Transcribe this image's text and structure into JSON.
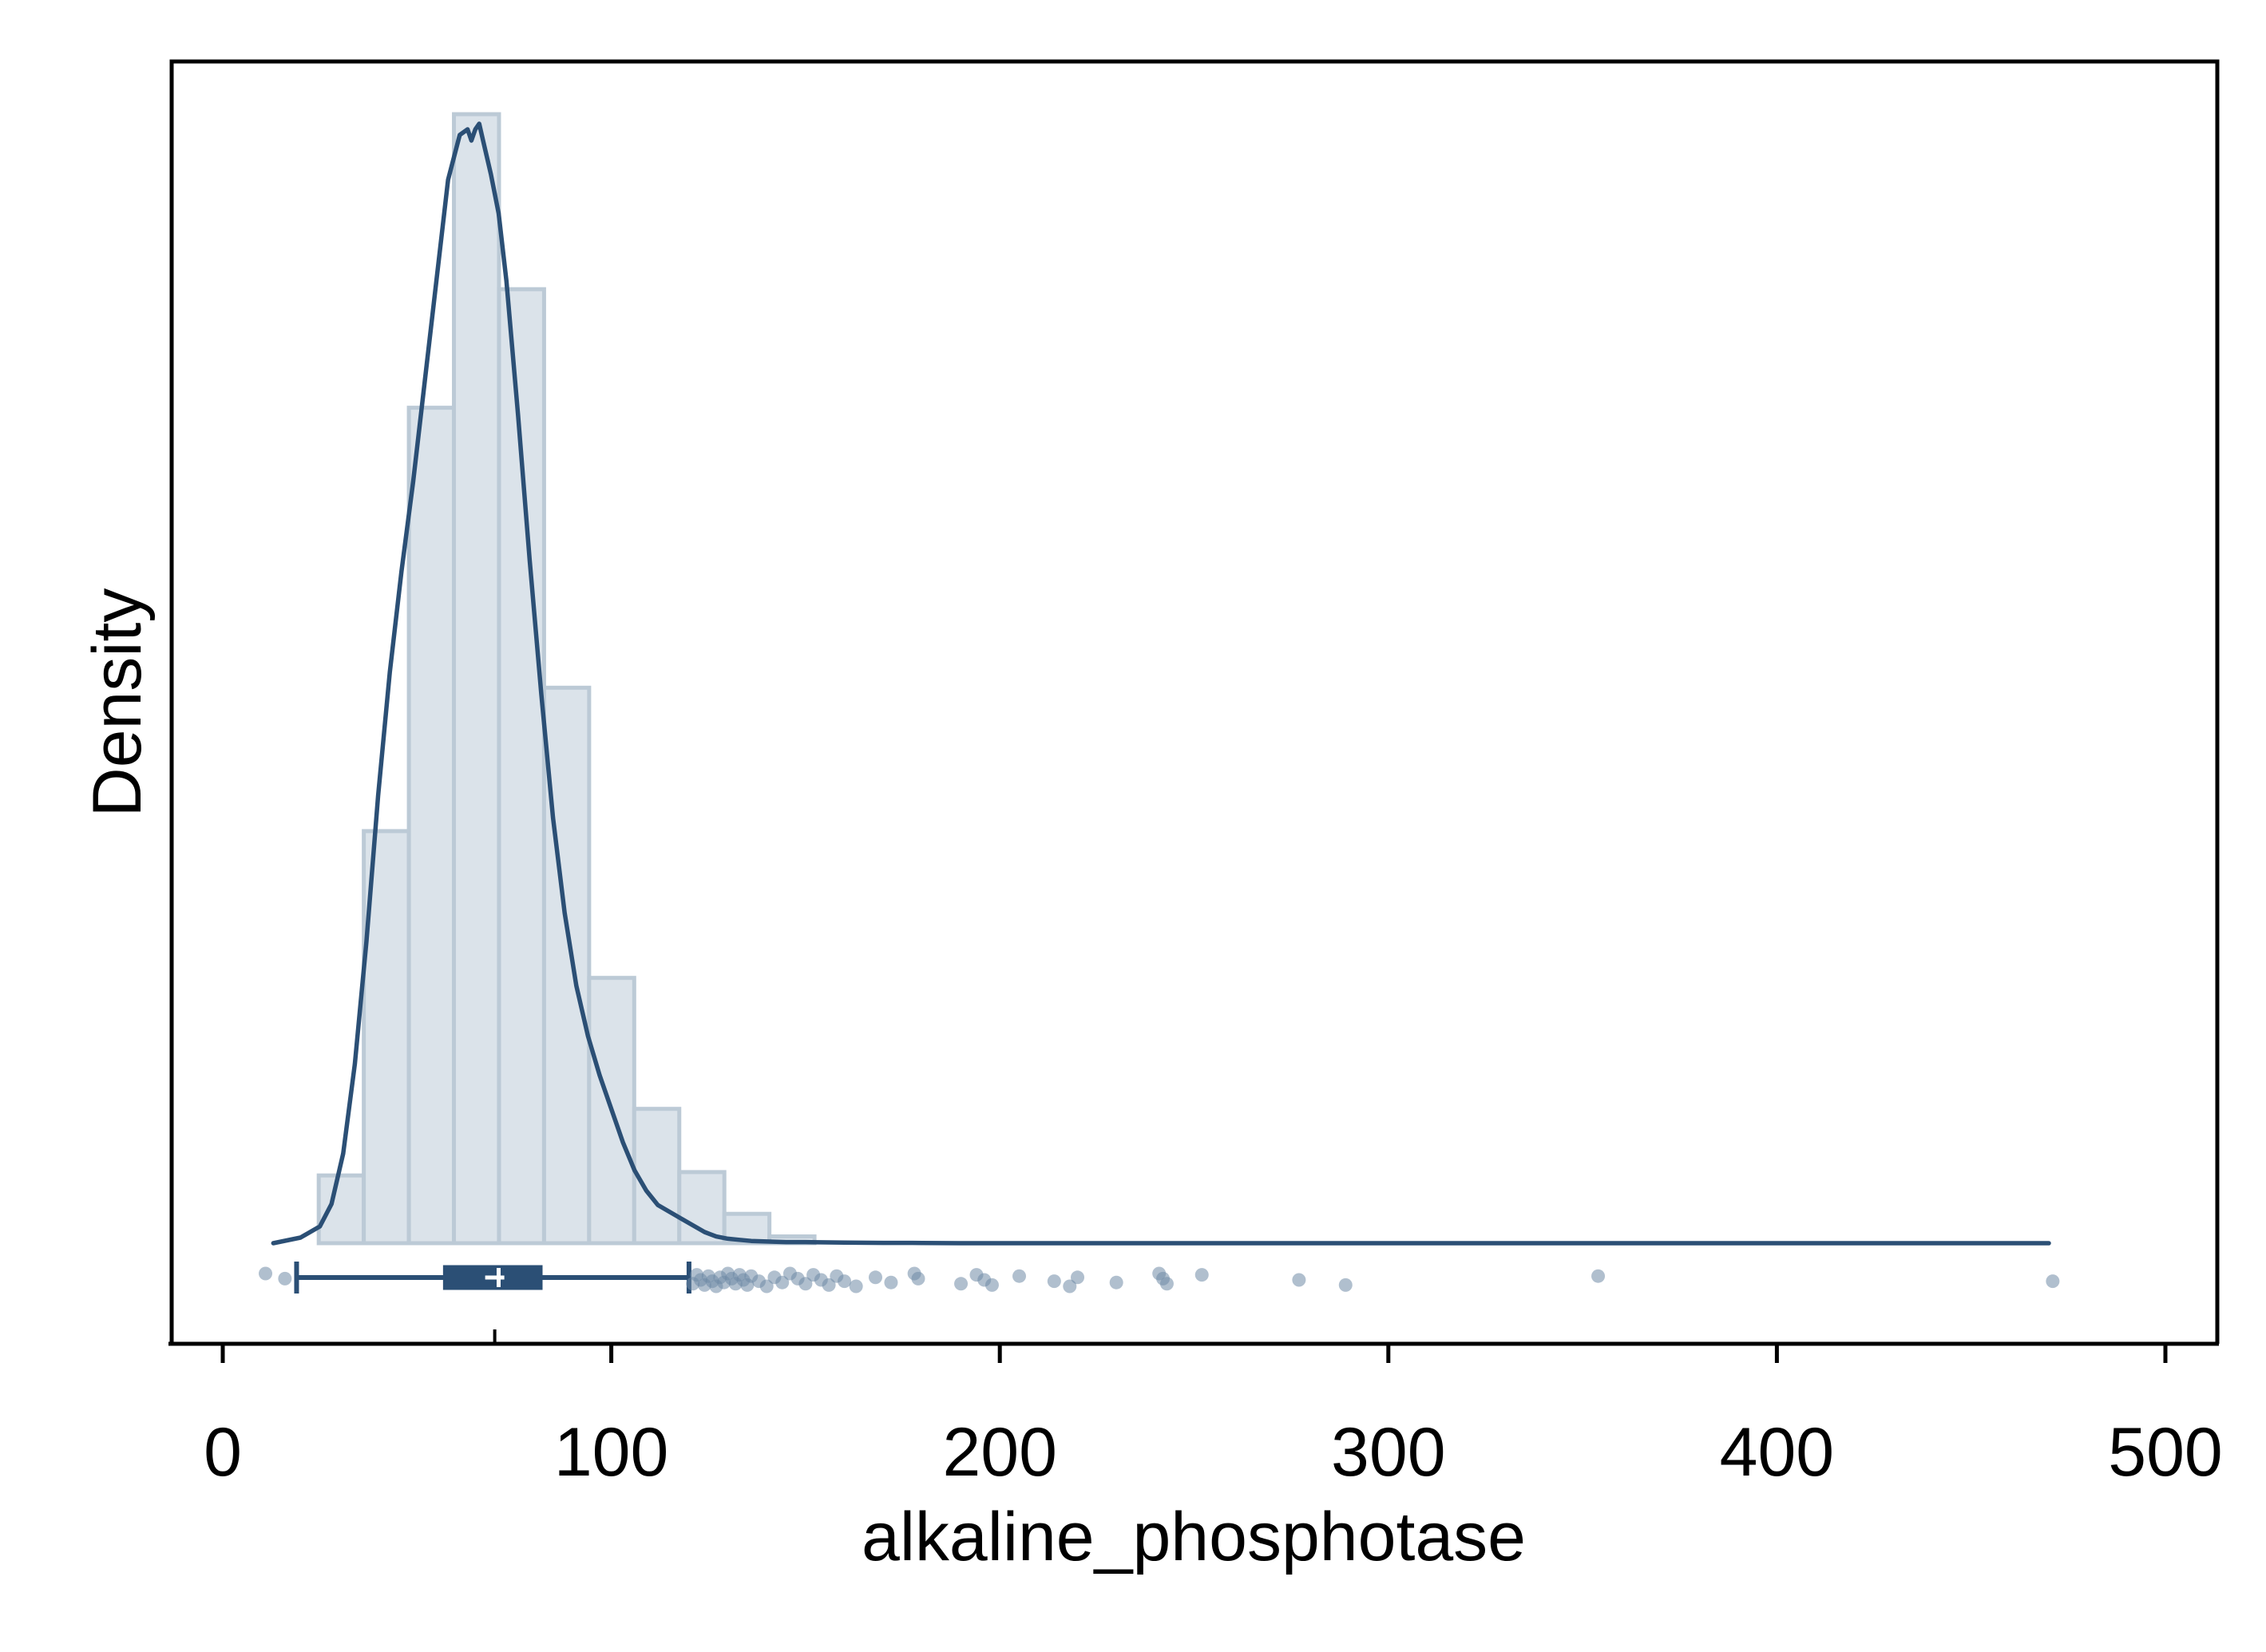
{
  "chart_data": {
    "type": "histogram",
    "title": "",
    "xlabel": "alkaline_phosphotase",
    "ylabel": "Density",
    "xlim": [
      -13,
      513
    ],
    "xticks": [
      0,
      100,
      200,
      300,
      400,
      500
    ],
    "xtick_labels": [
      "0",
      "100",
      "200",
      "300",
      "400",
      "500"
    ],
    "y_tick_labels_shown": false,
    "grid": false,
    "legend": "none",
    "colors": {
      "hist_fill": "#dbe3ea",
      "hist_edge": "#bccad6",
      "curve": "#2b4f75",
      "box": "#2b4f75",
      "points": "#6f8aa5"
    },
    "histogram": {
      "bin_width": 11.6,
      "bin_start": 24.7,
      "relative_heights": [
        0.06,
        0.365,
        0.74,
        1.0,
        0.845,
        0.492,
        0.235,
        0.119,
        0.063,
        0.026,
        0.006
      ]
    },
    "density_curve": {
      "x": [
        13,
        20,
        25,
        28,
        31,
        34,
        37,
        40,
        43,
        46,
        49,
        52,
        55,
        58,
        61,
        63,
        64,
        65,
        66,
        67,
        69,
        71,
        73,
        76,
        79,
        82,
        85,
        88,
        91,
        94,
        97,
        100,
        103,
        106,
        109,
        112,
        115,
        118,
        121,
        124,
        127,
        130,
        133,
        136,
        140,
        145,
        150,
        160,
        170,
        180,
        190,
        200,
        210,
        220,
        230,
        240,
        250,
        270,
        300,
        350,
        400,
        450,
        470
      ],
      "relative_density": [
        0.0,
        0.005,
        0.015,
        0.035,
        0.08,
        0.16,
        0.27,
        0.4,
        0.51,
        0.6,
        0.68,
        0.77,
        0.86,
        0.95,
        0.99,
        0.995,
        0.985,
        0.995,
        1.0,
        0.985,
        0.955,
        0.92,
        0.86,
        0.74,
        0.61,
        0.49,
        0.38,
        0.295,
        0.23,
        0.185,
        0.15,
        0.12,
        0.09,
        0.065,
        0.047,
        0.034,
        0.028,
        0.022,
        0.016,
        0.01,
        0.006,
        0.004,
        0.003,
        0.002,
        0.0015,
        0.001,
        0.001,
        0.0005,
        0.0003,
        0.0002,
        0.0,
        0.0,
        0.0,
        0.0,
        0.0,
        0.0,
        0.0,
        0.0,
        0.0,
        0.0,
        0.0,
        0.0,
        0.0
      ]
    },
    "boxplot": {
      "whisker_low": 19,
      "q1": 57,
      "median": 71,
      "mean": 70,
      "q3": 82,
      "whisker_high": 120
    },
    "outliers": [
      11,
      16,
      121,
      122,
      123,
      124,
      125,
      126,
      127,
      128,
      129,
      130,
      131,
      132,
      133,
      134,
      135,
      136,
      138,
      140,
      142,
      144,
      146,
      148,
      150,
      152,
      154,
      156,
      158,
      160,
      163,
      168,
      172,
      178,
      179,
      190,
      194,
      196,
      198,
      205,
      214,
      218,
      220,
      230,
      241,
      242,
      243,
      252,
      277,
      289,
      354,
      471
    ]
  }
}
